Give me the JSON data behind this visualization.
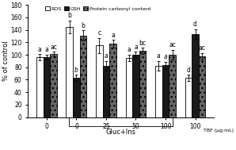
{
  "groups": [
    "0",
    "0",
    "25",
    "50",
    "100",
    "100"
  ],
  "tbf_label": "TBF (μg·mL)",
  "gluc_ins_label": "Gluc+Ins",
  "ylabel": "% of control",
  "ylim": [
    0,
    180
  ],
  "yticks": [
    0,
    20,
    40,
    60,
    80,
    100,
    120,
    140,
    160,
    180
  ],
  "bar_width": 0.23,
  "ROS_values": [
    96,
    145,
    115,
    95,
    82,
    63
  ],
  "GSH_values": [
    96,
    63,
    82,
    100,
    83,
    133
  ],
  "PCC_values": [
    101,
    131,
    118,
    106,
    100,
    98
  ],
  "ROS_errors": [
    5,
    10,
    12,
    5,
    8,
    5
  ],
  "GSH_errors": [
    4,
    5,
    8,
    5,
    6,
    8
  ],
  "PCC_errors": [
    4,
    8,
    6,
    5,
    8,
    5
  ],
  "ROS_color": "white",
  "GSH_color": "#1a1a1a",
  "PCC_color": "#666666",
  "PCC_hatch": "///",
  "ROS_labels": [
    "a",
    "b",
    "c",
    "a",
    "a",
    "d"
  ],
  "GSH_labels_italic": [
    false,
    true,
    true,
    false,
    true,
    false
  ],
  "GSH_labels": [
    "a",
    "b",
    "a",
    "a",
    "a",
    "d"
  ],
  "PCC_labels": [
    "ac",
    "b",
    "a",
    "bc",
    "ac",
    "ac"
  ],
  "legend_labels": [
    "ROS",
    "GSH",
    "Protein carbonyl content"
  ],
  "axis_fontsize": 6,
  "tick_fontsize": 5.5,
  "label_fontsize": 5.5
}
